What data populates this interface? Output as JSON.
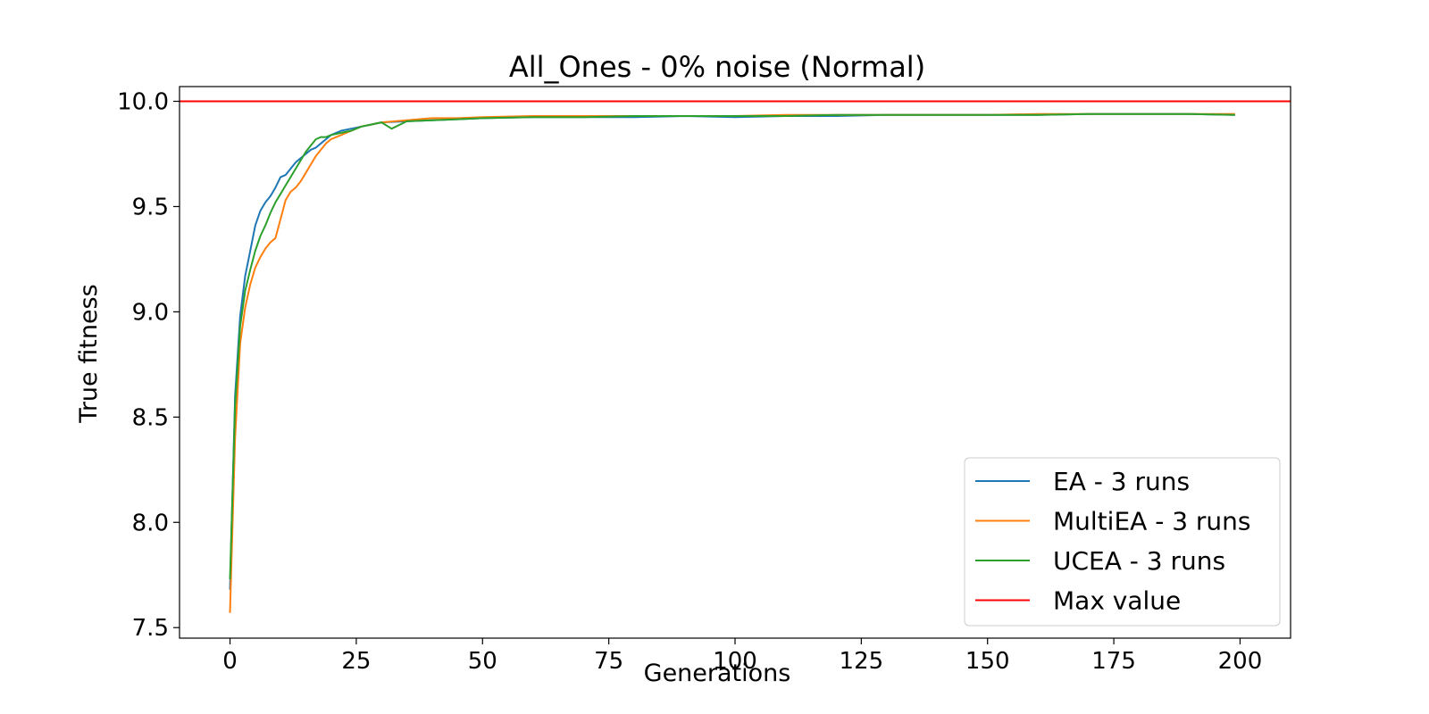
{
  "chart_data": {
    "type": "line",
    "title": "All_Ones - 0% noise (Normal)",
    "xlabel": "Generations",
    "ylabel": "True fitness",
    "xlim": [
      -10,
      210
    ],
    "ylim": [
      7.45,
      10.07
    ],
    "xticks": [
      0,
      25,
      50,
      75,
      100,
      125,
      150,
      175,
      200
    ],
    "yticks": [
      7.5,
      8.0,
      8.5,
      9.0,
      9.5,
      10.0
    ],
    "xtick_labels": [
      "0",
      "25",
      "50",
      "75",
      "100",
      "125",
      "150",
      "175",
      "200"
    ],
    "ytick_labels": [
      "7.5",
      "8.0",
      "8.5",
      "9.0",
      "9.5",
      "10.0"
    ],
    "grid": false,
    "legend_position": "bottom-right",
    "series": [
      {
        "name": "EA - 3 runs",
        "color": "#1f77b4",
        "x": [
          0,
          1,
          2,
          3,
          4,
          5,
          6,
          7,
          8,
          9,
          10,
          11,
          12,
          13,
          14,
          15,
          16,
          17,
          18,
          19,
          20,
          22,
          24,
          26,
          28,
          30,
          35,
          40,
          45,
          50,
          60,
          70,
          80,
          90,
          100,
          110,
          120,
          130,
          140,
          150,
          160,
          170,
          180,
          190,
          199
        ],
        "y": [
          7.68,
          8.6,
          8.98,
          9.17,
          9.29,
          9.41,
          9.48,
          9.52,
          9.55,
          9.59,
          9.64,
          9.65,
          9.68,
          9.71,
          9.73,
          9.75,
          9.77,
          9.78,
          9.8,
          9.82,
          9.84,
          9.86,
          9.87,
          9.88,
          9.89,
          9.9,
          9.905,
          9.91,
          9.915,
          9.92,
          9.925,
          9.925,
          9.925,
          9.93,
          9.925,
          9.93,
          9.93,
          9.935,
          9.935,
          9.935,
          9.935,
          9.94,
          9.94,
          9.94,
          9.935
        ]
      },
      {
        "name": "MultiEA - 3 runs",
        "color": "#ff7f0e",
        "x": [
          0,
          1,
          2,
          3,
          4,
          5,
          6,
          7,
          8,
          9,
          10,
          11,
          12,
          13,
          14,
          15,
          16,
          17,
          18,
          19,
          20,
          22,
          24,
          26,
          28,
          30,
          35,
          40,
          45,
          50,
          60,
          70,
          80,
          90,
          100,
          110,
          120,
          130,
          140,
          150,
          160,
          170,
          180,
          190,
          199
        ],
        "y": [
          7.57,
          8.4,
          8.85,
          9.02,
          9.13,
          9.21,
          9.26,
          9.3,
          9.33,
          9.35,
          9.44,
          9.53,
          9.57,
          9.59,
          9.62,
          9.66,
          9.7,
          9.74,
          9.77,
          9.8,
          9.82,
          9.84,
          9.86,
          9.88,
          9.89,
          9.9,
          9.91,
          9.92,
          9.92,
          9.925,
          9.93,
          9.93,
          9.93,
          9.93,
          9.93,
          9.935,
          9.935,
          9.935,
          9.935,
          9.935,
          9.94,
          9.94,
          9.94,
          9.94,
          9.94
        ]
      },
      {
        "name": "UCEA - 3 runs",
        "color": "#2ca02c",
        "x": [
          0,
          1,
          2,
          3,
          4,
          5,
          6,
          7,
          8,
          9,
          10,
          11,
          12,
          13,
          14,
          15,
          16,
          17,
          18,
          19,
          20,
          22,
          24,
          26,
          28,
          30,
          32,
          35,
          40,
          45,
          50,
          60,
          70,
          80,
          90,
          100,
          110,
          120,
          130,
          140,
          150,
          160,
          170,
          180,
          190,
          199
        ],
        "y": [
          7.73,
          8.55,
          8.93,
          9.1,
          9.2,
          9.29,
          9.36,
          9.41,
          9.47,
          9.52,
          9.56,
          9.6,
          9.64,
          9.68,
          9.72,
          9.76,
          9.79,
          9.82,
          9.83,
          9.83,
          9.84,
          9.85,
          9.86,
          9.88,
          9.89,
          9.9,
          9.87,
          9.905,
          9.91,
          9.915,
          9.92,
          9.925,
          9.925,
          9.93,
          9.93,
          9.93,
          9.93,
          9.935,
          9.935,
          9.935,
          9.935,
          9.935,
          9.94,
          9.94,
          9.94,
          9.935
        ]
      },
      {
        "name": "Max value",
        "color": "#ff0000",
        "type": "hline",
        "y": 10.0
      }
    ]
  }
}
